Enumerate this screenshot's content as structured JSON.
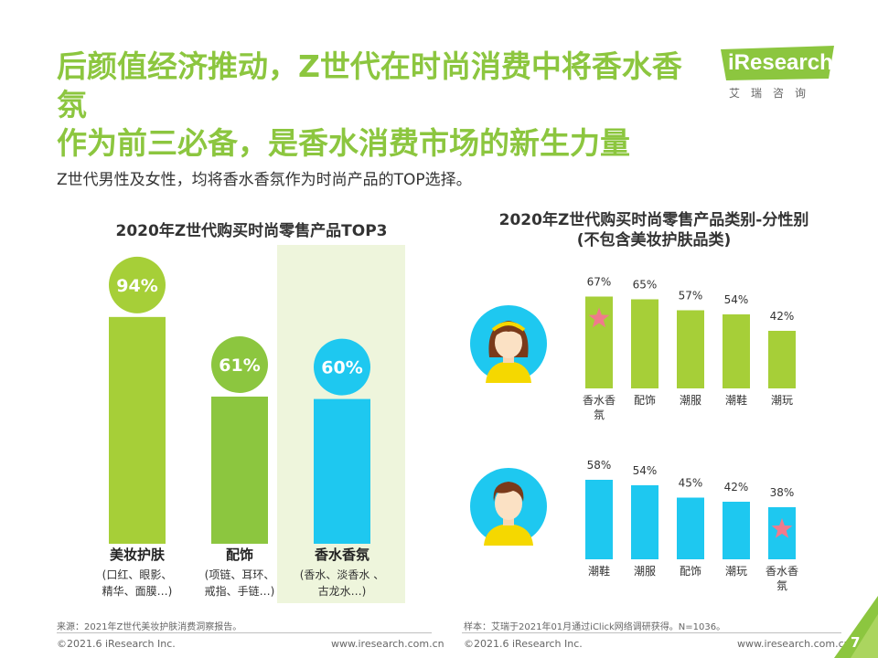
{
  "header": {
    "title_line1": "后颜值经济推动，Z世代在时尚消费中将香水香氛",
    "title_line2": "作为前三必备，是香水消费市场的新生力量",
    "logo_text": "iResearch",
    "logo_sub": "艾瑞咨询"
  },
  "subtitle": "Z世代男性及女性，均将香水香氛作为时尚产品的TOP选择。",
  "chart_data": [
    {
      "type": "bar",
      "title": "2020年Z世代购买时尚零售产品TOP3",
      "categories": [
        "美妆护肤",
        "配饰",
        "香水香氛"
      ],
      "category_notes": [
        "(口红、眼影、\n精华、面膜…)",
        "(项链、耳环、\n戒指、手链…)",
        "(香水、淡香水 、\n古龙水…)"
      ],
      "values": [
        94,
        61,
        60
      ],
      "value_labels": [
        "94%",
        "61%",
        "60%"
      ],
      "colors": [
        "#a6cf38",
        "#8cc63f",
        "#1ec8f0"
      ],
      "highlight_index": 2
    },
    {
      "type": "bar",
      "title": "2020年Z世代购买时尚零售产品类别-分性别",
      "title_line2": "(不包含美妆护肤品类)",
      "panels": [
        {
          "categories": [
            "香水香\n氛",
            "配饰",
            "潮服",
            "潮鞋",
            "潮玩"
          ],
          "values": [
            67,
            65,
            57,
            54,
            42
          ],
          "value_labels": [
            "67%",
            "65%",
            "57%",
            "54%",
            "42%"
          ],
          "color": "#a6cf38",
          "star_index": 0
        },
        {
          "categories": [
            "潮鞋",
            "潮服",
            "配饰",
            "潮玩",
            "香水香\n氛"
          ],
          "values": [
            58,
            54,
            45,
            42,
            38
          ],
          "value_labels": [
            "58%",
            "54%",
            "45%",
            "42%",
            "38%"
          ],
          "color": "#1ec8f0",
          "star_index": 4
        }
      ]
    }
  ],
  "footer": {
    "source_left": "来源：2021年Z世代美妆护肤消费洞察报告。",
    "source_right": "样本：艾瑞于2021年01月通过iClick网络调研获得。N=1036。",
    "copyright_left": "©2021.6 iResearch Inc.",
    "url_left": "www.iresearch.com.cn",
    "copyright_right": "©2021.6 iResearch Inc.",
    "url_right": "www.iresearch.com.cn",
    "page_number": "7"
  },
  "colors": {
    "accent": "#8cc63f",
    "blue": "#1ec8f0",
    "highlight_bg": "#eef5dc",
    "star": "#f07a8c"
  }
}
